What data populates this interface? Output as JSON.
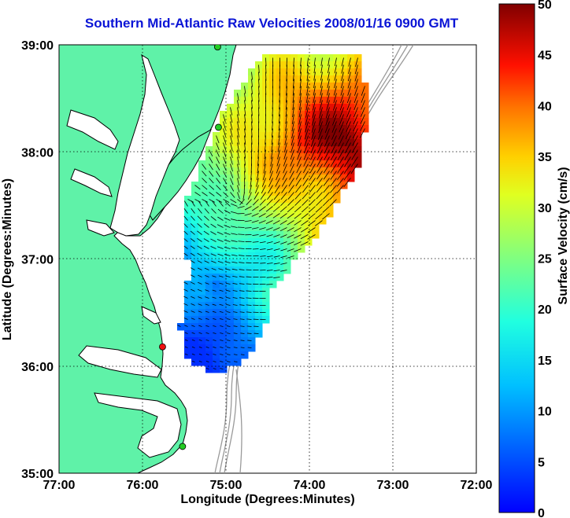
{
  "title": "Southern Mid-Atlantic Raw Velocities 2008/01/16 0900 GMT",
  "axes": {
    "xlabel": "Longitude (Degrees:Minutes)",
    "ylabel": "Latitude (Degrees:Minutes)",
    "xticks": [
      "77:00",
      "76:00",
      "75:00",
      "74:00",
      "73:00",
      "72:00"
    ],
    "yticks": [
      "39:00",
      "38:00",
      "37:00",
      "36:00",
      "35:00"
    ],
    "xlim": [
      -77,
      -72
    ],
    "ylim": [
      35,
      39
    ]
  },
  "colorbar": {
    "label": "Surface Velocity (cm/s)",
    "ticks": [
      "50",
      "45",
      "40",
      "35",
      "30",
      "25",
      "20",
      "15",
      "10",
      "5",
      "0"
    ],
    "range": [
      0,
      50
    ],
    "colormap": "jet"
  },
  "colors": {
    "land": "#5ff2a8",
    "coastline": "#000000",
    "bathymetry": "#9a9a9a",
    "title": "#0a14d6",
    "site_active": "#22cc22",
    "site_inactive": "#ee1111"
  },
  "stations": [
    {
      "status": "active",
      "lon": -75.1,
      "lat": 38.98
    },
    {
      "status": "active",
      "lon": -75.09,
      "lat": 38.23
    },
    {
      "status": "inactive",
      "lon": -75.76,
      "lat": 36.18
    },
    {
      "status": "active",
      "lon": -75.52,
      "lat": 35.25
    }
  ]
}
